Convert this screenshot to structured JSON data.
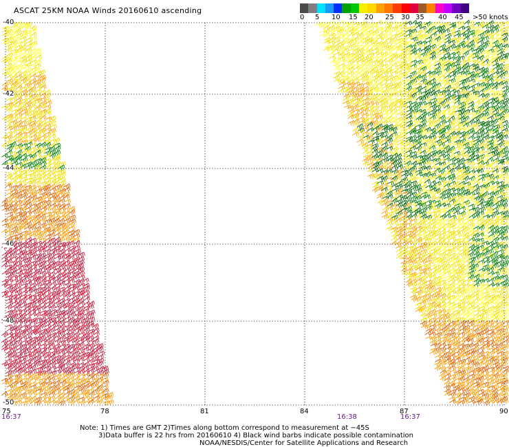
{
  "title": "ASCAT 25KM NOAA Winds 20160610 ascending",
  "legend": {
    "labels": [
      "0",
      "5",
      "10",
      "15",
      "20",
      "25",
      "30",
      "35",
      "40",
      "45",
      ">50 knots"
    ],
    "colors": [
      "#4a4a4a",
      "#7f7f7f",
      "#00e0ff",
      "#1a9aff",
      "#0030ff",
      "#00a000",
      "#00c800",
      "#f5f000",
      "#ffd800",
      "#ffa000",
      "#ff7800",
      "#ff3c00",
      "#ff0000",
      "#e00040",
      "#a05a2a",
      "#ff8000",
      "#ff00c8",
      "#c000ff",
      "#7000c0",
      "#400080"
    ]
  },
  "map": {
    "lat_labels": [
      "-40",
      "-42",
      "-44",
      "-46",
      "-48",
      "-50"
    ],
    "lon_labels": [
      "75",
      "78",
      "81",
      "84",
      "87",
      "90"
    ],
    "time_labels": [
      "16:37",
      "16:38",
      "16:37"
    ],
    "barb_colors": {
      "yellow": "#f0e000",
      "light_yellow": "#ffff30",
      "orange": "#ff9d00",
      "dark_orange": "#e06000",
      "red": "#d81030",
      "crimson": "#c0183c",
      "green": "#008000",
      "dark_green": "#006400"
    },
    "swath_zones": [
      {
        "name": "west-swath",
        "lat_range": [
          -50,
          -40
        ],
        "lon_range": [
          75,
          78
        ]
      },
      {
        "name": "east-swath",
        "lat_range": [
          -50,
          -40
        ],
        "lon_range": [
          84,
          90
        ]
      }
    ]
  },
  "notes": {
    "line1": "Note: 1) Times are GMT 2)Times along bottom correspond to measurement at −45S",
    "line2": "3)Data buffer is 22 hrs from 20160610 4) Black wind barbs indicate possible contamination",
    "line3": "NOAA/NESDIS/Center for Satellite Applications and Research"
  }
}
